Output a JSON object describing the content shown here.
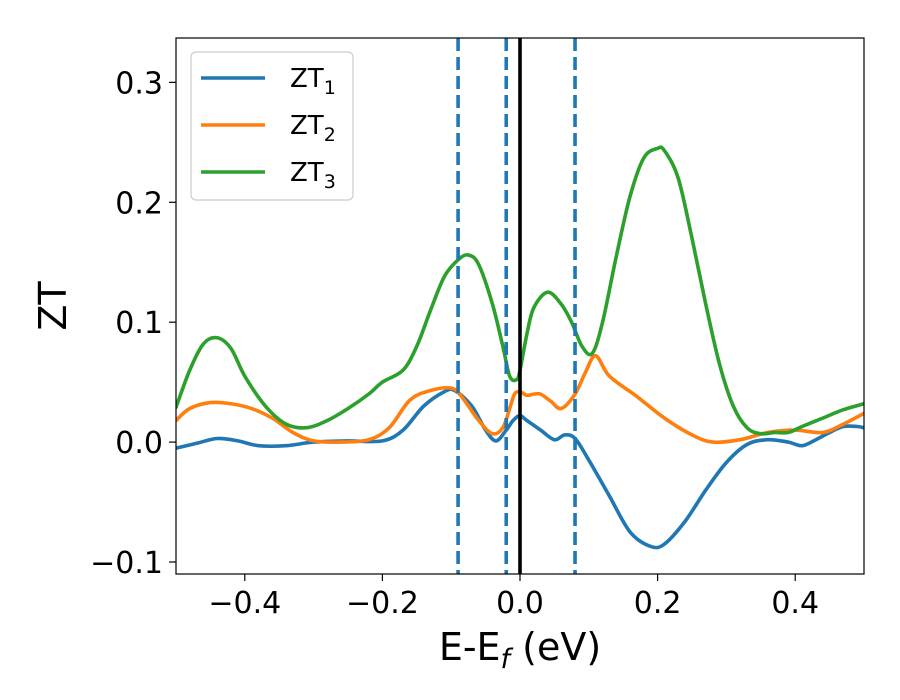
{
  "chart_data": {
    "type": "line",
    "xlabel": "E-E",
    "xlabel_subscript": "f",
    "xlabel_unit": " (eV)",
    "ylabel": "ZT",
    "xlim": [
      -0.5,
      0.5
    ],
    "ylim": [
      -0.11,
      0.337
    ],
    "xticks": [
      -0.4,
      -0.2,
      0.0,
      0.2,
      0.4
    ],
    "xtick_labels": [
      "−0.4",
      "−0.2",
      "0.0",
      "0.2",
      "0.4"
    ],
    "yticks": [
      -0.1,
      0.0,
      0.1,
      0.2,
      0.3
    ],
    "ytick_labels": [
      "−0.1",
      "0.0",
      "0.1",
      "0.2",
      "0.3"
    ],
    "legend_position": "upper-left",
    "grid": false,
    "series": [
      {
        "name": "ZT",
        "name_subscript": "1",
        "color": "#1f77b4",
        "x": [
          -0.5,
          -0.47,
          -0.44,
          -0.41,
          -0.38,
          -0.34,
          -0.3,
          -0.25,
          -0.2,
          -0.17,
          -0.14,
          -0.11,
          -0.095,
          -0.07,
          -0.05,
          -0.035,
          -0.02,
          -0.01,
          0.0,
          0.01,
          0.03,
          0.05,
          0.065,
          0.08,
          0.1,
          0.13,
          0.16,
          0.19,
          0.21,
          0.24,
          0.27,
          0.3,
          0.33,
          0.36,
          0.39,
          0.41,
          0.43,
          0.45,
          0.47,
          0.49,
          0.5
        ],
        "y": [
          -0.005,
          -0.001,
          0.003,
          0.001,
          -0.003,
          -0.003,
          0.0,
          0.001,
          0.001,
          0.01,
          0.03,
          0.042,
          0.043,
          0.03,
          0.01,
          0.001,
          0.01,
          0.018,
          0.022,
          0.018,
          0.01,
          0.002,
          0.006,
          0.003,
          -0.015,
          -0.045,
          -0.075,
          -0.087,
          -0.085,
          -0.066,
          -0.04,
          -0.017,
          -0.002,
          0.002,
          0.0,
          -0.003,
          0.002,
          0.008,
          0.013,
          0.013,
          0.012
        ]
      },
      {
        "name": "ZT",
        "name_subscript": "2",
        "color": "#ff7f0e",
        "x": [
          -0.5,
          -0.48,
          -0.45,
          -0.42,
          -0.39,
          -0.36,
          -0.33,
          -0.3,
          -0.26,
          -0.22,
          -0.19,
          -0.16,
          -0.13,
          -0.1,
          -0.085,
          -0.06,
          -0.04,
          -0.025,
          -0.015,
          -0.008,
          0.0,
          0.01,
          0.02,
          0.03,
          0.045,
          0.06,
          0.08,
          0.095,
          0.11,
          0.13,
          0.17,
          0.21,
          0.25,
          0.28,
          0.32,
          0.36,
          0.4,
          0.44,
          0.47,
          0.5
        ],
        "y": [
          0.018,
          0.028,
          0.033,
          0.032,
          0.028,
          0.02,
          0.008,
          0.001,
          0.0,
          0.002,
          0.012,
          0.035,
          0.043,
          0.045,
          0.038,
          0.018,
          0.007,
          0.012,
          0.028,
          0.04,
          0.042,
          0.039,
          0.04,
          0.04,
          0.034,
          0.028,
          0.04,
          0.058,
          0.072,
          0.055,
          0.038,
          0.02,
          0.006,
          0.0,
          0.002,
          0.008,
          0.01,
          0.008,
          0.015,
          0.024
        ]
      },
      {
        "name": "ZT",
        "name_subscript": "3",
        "color": "#2ca02c",
        "x": [
          -0.5,
          -0.48,
          -0.46,
          -0.44,
          -0.42,
          -0.4,
          -0.37,
          -0.34,
          -0.31,
          -0.28,
          -0.25,
          -0.22,
          -0.2,
          -0.17,
          -0.15,
          -0.13,
          -0.11,
          -0.09,
          -0.075,
          -0.06,
          -0.04,
          -0.025,
          -0.015,
          -0.005,
          0.0,
          0.01,
          0.02,
          0.04,
          0.06,
          0.075,
          0.09,
          0.105,
          0.12,
          0.14,
          0.16,
          0.18,
          0.2,
          0.21,
          0.23,
          0.25,
          0.27,
          0.29,
          0.31,
          0.33,
          0.35,
          0.37,
          0.39,
          0.41,
          0.44,
          0.47,
          0.5
        ],
        "y": [
          0.029,
          0.06,
          0.082,
          0.087,
          0.078,
          0.055,
          0.03,
          0.015,
          0.012,
          0.018,
          0.028,
          0.04,
          0.05,
          0.06,
          0.08,
          0.11,
          0.138,
          0.152,
          0.156,
          0.148,
          0.115,
          0.08,
          0.055,
          0.052,
          0.06,
          0.09,
          0.112,
          0.125,
          0.115,
          0.1,
          0.08,
          0.074,
          0.1,
          0.155,
          0.205,
          0.237,
          0.245,
          0.243,
          0.22,
          0.17,
          0.115,
          0.065,
          0.03,
          0.012,
          0.007,
          0.008,
          0.008,
          0.013,
          0.02,
          0.027,
          0.032
        ]
      }
    ],
    "vertical_lines": [
      {
        "x": -0.09,
        "color": "#1f77b4",
        "style": "dashed"
      },
      {
        "x": -0.02,
        "color": "#1f77b4",
        "style": "dashed"
      },
      {
        "x": 0.0,
        "color": "#000000",
        "style": "solid"
      },
      {
        "x": 0.08,
        "color": "#1f77b4",
        "style": "dashed"
      }
    ]
  }
}
